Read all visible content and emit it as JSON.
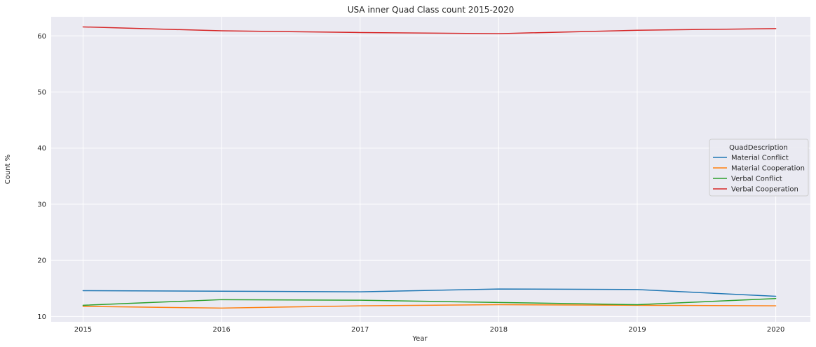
{
  "chart_data": {
    "type": "line",
    "title": "USA inner Quad Class count 2015-2020",
    "xlabel": "Year",
    "ylabel": "Count %",
    "x": [
      "2015",
      "2016",
      "2017",
      "2018",
      "2019",
      "2020"
    ],
    "xlim": [
      2014.77,
      2020.25
    ],
    "ylim": [
      9.05,
      63.4
    ],
    "yticks": [
      10,
      20,
      30,
      40,
      50,
      60
    ],
    "grid": true,
    "legend": {
      "title": "QuadDescription",
      "placement": "center-right"
    },
    "series": [
      {
        "name": "Material Conflict",
        "color": "#1f77b4",
        "values": [
          14.6,
          14.5,
          14.4,
          14.9,
          14.8,
          13.6
        ]
      },
      {
        "name": "Material Cooperation",
        "color": "#ff7f0e",
        "values": [
          11.8,
          11.5,
          11.9,
          12.1,
          12.0,
          11.9
        ]
      },
      {
        "name": "Verbal Conflict",
        "color": "#2ca02c",
        "values": [
          12.0,
          13.0,
          12.9,
          12.5,
          12.1,
          13.2
        ]
      },
      {
        "name": "Verbal Cooperation",
        "color": "#d62728",
        "values": [
          61.6,
          60.9,
          60.6,
          60.4,
          61.0,
          61.3
        ]
      }
    ]
  }
}
